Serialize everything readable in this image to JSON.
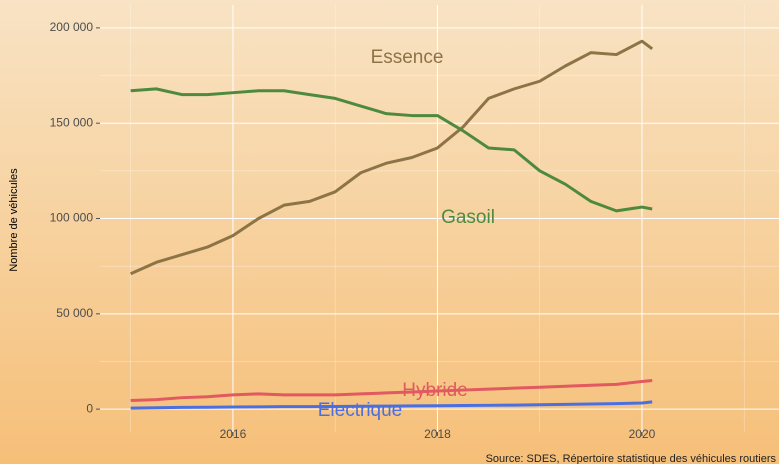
{
  "chart_data": {
    "type": "line",
    "ylabel": "Nombre de véhicules",
    "source": "Source: SDES, Répertoire statistique des véhicules routiers",
    "x": [
      2015,
      2015.25,
      2015.5,
      2015.75,
      2016,
      2016.25,
      2016.5,
      2016.75,
      2017,
      2017.25,
      2017.5,
      2017.75,
      2018,
      2018.25,
      2018.5,
      2018.75,
      2019,
      2019.25,
      2019.5,
      2019.75,
      2020,
      2020.1
    ],
    "series": [
      {
        "name": "Essence",
        "color": "#8c7446",
        "values": [
          71000,
          77000,
          81000,
          85000,
          91000,
          100000,
          107000,
          109000,
          114000,
          124000,
          129000,
          132000,
          137000,
          148000,
          163000,
          168000,
          172000,
          180000,
          187000,
          186000,
          193000,
          189000
        ]
      },
      {
        "name": "Gasoil",
        "color": "#4e8a3e",
        "values": [
          167000,
          168000,
          165000,
          165000,
          166000,
          167000,
          167000,
          165000,
          163000,
          159000,
          155000,
          154000,
          154000,
          146000,
          137000,
          136000,
          125000,
          118000,
          109000,
          104000,
          106000,
          105000
        ]
      },
      {
        "name": "Hybride",
        "color": "#e05a60",
        "values": [
          4500,
          5000,
          6000,
          6500,
          7500,
          8000,
          7500,
          7500,
          7500,
          8000,
          8500,
          9000,
          9500,
          10000,
          10500,
          11000,
          11500,
          12000,
          12500,
          13000,
          14500,
          15000
        ]
      },
      {
        "name": "Electrique",
        "color": "#4a6fe0",
        "values": [
          500,
          700,
          900,
          1000,
          1100,
          1200,
          1300,
          1300,
          1400,
          1500,
          1600,
          1700,
          1800,
          1900,
          2000,
          2100,
          2300,
          2500,
          2700,
          2900,
          3200,
          3800
        ]
      }
    ],
    "xlim": [
      2014.7,
      2021.34
    ],
    "ylim": [
      -12000,
      212000
    ],
    "xticks": [
      2016,
      2018,
      2020
    ],
    "yticks": [
      {
        "value": 0,
        "label": "0"
      },
      {
        "value": 50000,
        "label": "50 000"
      },
      {
        "value": 100000,
        "label": "100 000"
      },
      {
        "value": 150000,
        "label": "150 000"
      },
      {
        "value": 200000,
        "label": "200 000"
      }
    ],
    "x_minor_grid": [
      2015,
      2017,
      2019,
      2021
    ],
    "y_minor_grid": [
      25000,
      75000,
      125000,
      175000
    ],
    "grid": true
  }
}
